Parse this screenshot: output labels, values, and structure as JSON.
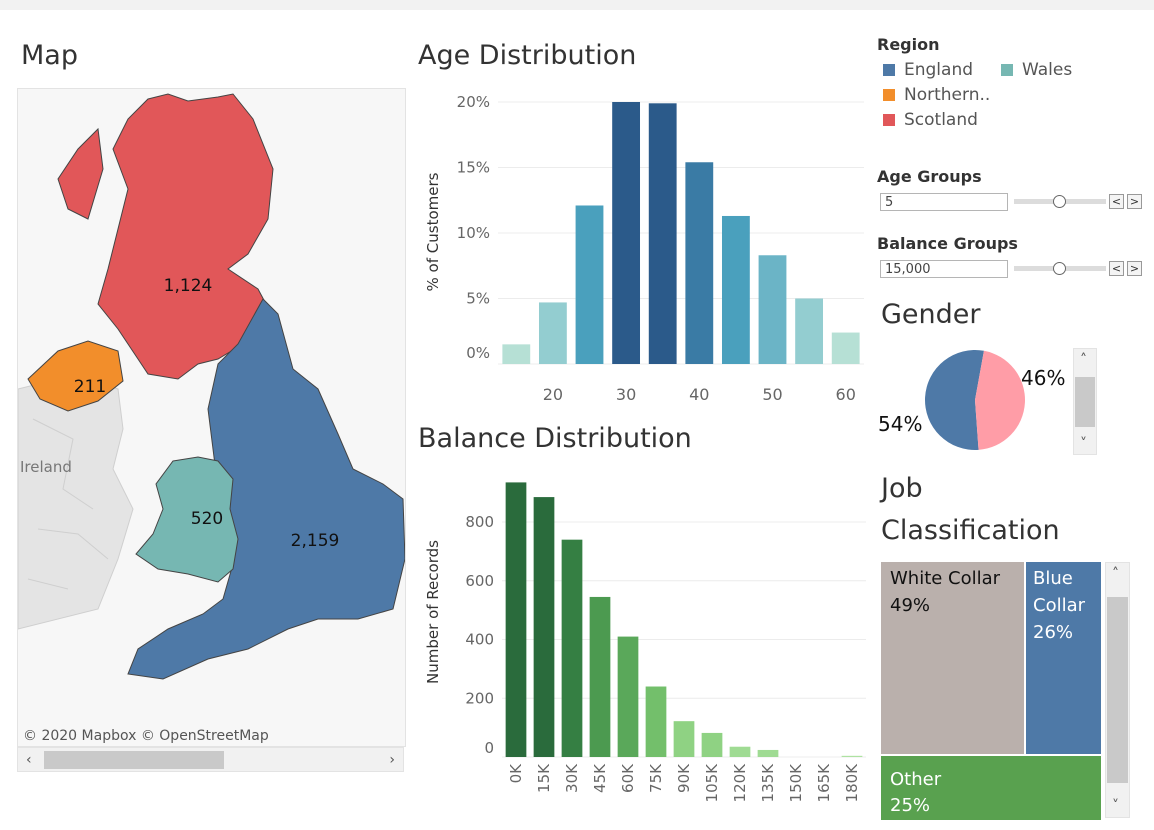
{
  "titles": {
    "map": "Map",
    "age": "Age Distribution",
    "balance": "Balance Distribution",
    "gender": "Gender",
    "job_line1": "Job",
    "job_line2": "Classification"
  },
  "map": {
    "ireland_label": "Ireland",
    "attribution": "© 2020 Mapbox © OpenStreetMap",
    "regions": [
      {
        "name": "Scotland",
        "value": "1,124",
        "color": "#e15759"
      },
      {
        "name": "Northern Ireland",
        "value": "211",
        "color": "#f28e2b"
      },
      {
        "name": "Wales",
        "value": "520",
        "color": "#76b7b2"
      },
      {
        "name": "England",
        "value": "2,159",
        "color": "#4e79a7"
      }
    ]
  },
  "legend": {
    "title": "Region",
    "items": [
      {
        "label": "England",
        "color": "#4e79a7"
      },
      {
        "label": "Wales",
        "color": "#76b7b2"
      },
      {
        "label": "Northern..",
        "color": "#f28e2b"
      },
      {
        "label": "Scotland",
        "color": "#e15759"
      }
    ]
  },
  "params": {
    "age_groups_label": "Age Groups",
    "age_groups_value": "5",
    "balance_groups_label": "Balance Groups",
    "balance_groups_value": "15,000",
    "prev_glyph": "<",
    "next_glyph": ">"
  },
  "chart_data": [
    {
      "type": "bar",
      "title": "Age Distribution",
      "ylabel": "% of Customers",
      "xlabel": "",
      "x_ticks": [
        "20",
        "30",
        "40",
        "50",
        "60"
      ],
      "y_ticks": [
        "0%",
        "5%",
        "10%",
        "15%",
        "20%"
      ],
      "ylim": [
        0,
        20
      ],
      "categories": [
        "15",
        "20",
        "25",
        "30",
        "35",
        "40",
        "45",
        "50",
        "55",
        "60"
      ],
      "values": [
        1.5,
        4.7,
        12.1,
        20.0,
        19.9,
        15.4,
        11.3,
        8.3,
        5.0,
        2.4
      ],
      "colors": [
        "#b6e0d5",
        "#93cdd0",
        "#4aa0bd",
        "#2b5a8a",
        "#2b5a8a",
        "#3a7ba5",
        "#4aa0bd",
        "#6bb4c6",
        "#93cdd0",
        "#b6e0d5"
      ],
      "grid": true
    },
    {
      "type": "bar",
      "title": "Balance Distribution",
      "ylabel": "Number of Records",
      "xlabel": "",
      "categories": [
        "0K",
        "15K",
        "30K",
        "45K",
        "60K",
        "75K",
        "90K",
        "105K",
        "120K",
        "135K",
        "150K",
        "165K",
        "180K"
      ],
      "values": [
        935,
        885,
        740,
        545,
        410,
        240,
        122,
        82,
        35,
        24,
        0,
        0,
        4
      ],
      "y_ticks": [
        "0",
        "200",
        "400",
        "600",
        "800"
      ],
      "ylim": [
        0,
        950
      ],
      "colors": [
        "#2a6b3c",
        "#2a6b3c",
        "#357f43",
        "#4c9a50",
        "#5aa85a",
        "#73bf6b",
        "#8fd283",
        "#8fd283",
        "#9fdb93",
        "#9fdb93",
        "#aee2a2",
        "#aee2a2",
        "#aee2a2"
      ],
      "grid": true
    },
    {
      "type": "pie",
      "title": "Gender",
      "slices": [
        {
          "label": "54%",
          "value": 54,
          "color": "#4e79a7"
        },
        {
          "label": "46%",
          "value": 46,
          "color": "#ff9da7"
        }
      ]
    },
    {
      "type": "table",
      "title": "Job Classification",
      "cells": [
        {
          "name": "White Collar",
          "pct": "49%",
          "value": 49,
          "color": "#bab0ac"
        },
        {
          "name": "Blue Collar",
          "line1": "Blue",
          "line2": "Collar",
          "pct": "26%",
          "value": 26,
          "color": "#4e79a7"
        },
        {
          "name": "Other",
          "pct": "25%",
          "value": 25,
          "color": "#59a14f"
        }
      ]
    }
  ]
}
